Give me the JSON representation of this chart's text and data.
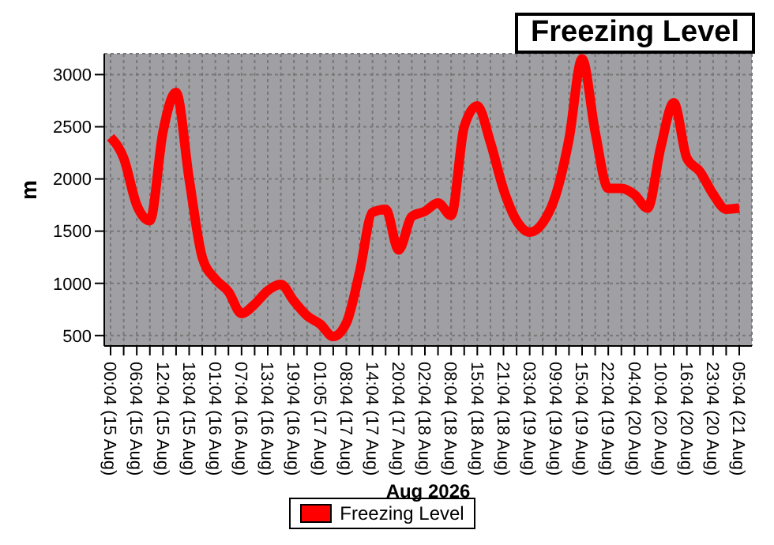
{
  "chart_data": {
    "type": "line",
    "title": "Freezing Level",
    "xlabel": "Aug 2026",
    "ylabel": "m",
    "ylim": [
      400,
      3200
    ],
    "yticks": [
      500,
      1000,
      1500,
      2000,
      2500,
      3000
    ],
    "categories": [
      "00:04 (15 Aug)",
      null,
      "06:04 (15 Aug)",
      null,
      "12:04 (15 Aug)",
      null,
      "18:04 (15 Aug)",
      null,
      "01:04 (16 Aug)",
      null,
      "07:04 (16 Aug)",
      null,
      "13:04 (16 Aug)",
      null,
      "19:04 (16 Aug)",
      null,
      "01:05 (17 Aug)",
      null,
      "08:04 (17 Aug)",
      null,
      "14:04 (17 Aug)",
      null,
      "20:04 (17 Aug)",
      null,
      "02:04 (18 Aug)",
      null,
      "08:04 (18 Aug)",
      null,
      "15:04 (18 Aug)",
      null,
      "21:04 (18 Aug)",
      null,
      "03:04 (19 Aug)",
      null,
      "09:04 (19 Aug)",
      null,
      "15:04 (19 Aug)",
      null,
      "22:04 (19 Aug)",
      null,
      "04:04 (20 Aug)",
      null,
      "10:04 (20 Aug)",
      null,
      "16:04 (20 Aug)",
      null,
      "23:04 (20 Aug)",
      null,
      "05:04 (21 Aug)"
    ],
    "grid": true,
    "legend": "bottom",
    "marker": "none",
    "line_style": "solid",
    "series": [
      {
        "name": "Freezing Level",
        "color": "#ff0000",
        "values": [
          2400,
          2200,
          1750,
          1600,
          2450,
          2830,
          2000,
          1250,
          1040,
          920,
          710,
          800,
          930,
          990,
          830,
          690,
          610,
          490,
          620,
          1100,
          1680,
          1710,
          1320,
          1640,
          1690,
          1770,
          1650,
          2500,
          2700,
          2350,
          1900,
          1600,
          1490,
          1580,
          1850,
          2380,
          3150,
          2450,
          1910,
          1910,
          1850,
          1720,
          2300,
          2730,
          2200,
          2070,
          1855,
          1710,
          1720
        ]
      }
    ]
  }
}
